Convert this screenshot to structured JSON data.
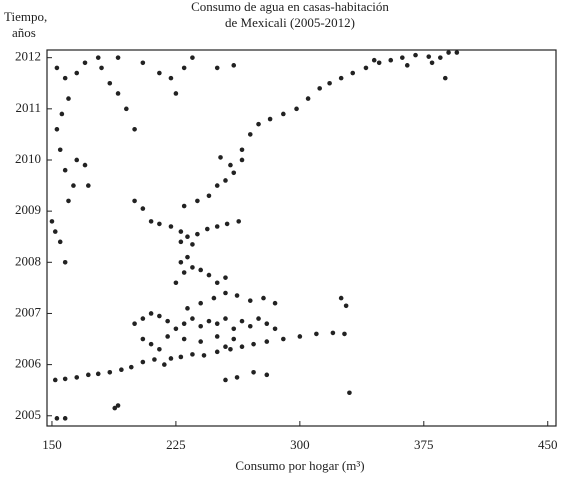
{
  "chart_data": {
    "type": "scatter",
    "title": [
      "Consumo de agua en casas-habitación",
      "de Mexicali (2005-2012)"
    ],
    "y_label": [
      "Tiempo,",
      "años"
    ],
    "x_label": "Consumo por hogar (m³)",
    "color": "#222222",
    "xlim": [
      147,
      455
    ],
    "ylim": [
      2004.8,
      2012.15
    ],
    "xticks": [
      150,
      225,
      300,
      375,
      450
    ],
    "yticks": [
      2005,
      2006,
      2007,
      2008,
      2009,
      2010,
      2011,
      2012
    ],
    "grid": false,
    "x": [
      152,
      158,
      165,
      172,
      178,
      185,
      192,
      198,
      205,
      212,
      218,
      222,
      228,
      235,
      242,
      250,
      258,
      265,
      272,
      280,
      290,
      300,
      310,
      320,
      327,
      153,
      158,
      190,
      188,
      200,
      205,
      210,
      215,
      220,
      225,
      230,
      235,
      240,
      245,
      250,
      255,
      260,
      265,
      270,
      275,
      280,
      285,
      232,
      240,
      248,
      255,
      262,
      270,
      278,
      285,
      205,
      210,
      215,
      220,
      230,
      240,
      250,
      255,
      260,
      225,
      230,
      235,
      228,
      232,
      240,
      245,
      250,
      255,
      210,
      215,
      222,
      228,
      232,
      238,
      244,
      250,
      256,
      263,
      228,
      235,
      200,
      205,
      230,
      238,
      245,
      250,
      255,
      260,
      258,
      265,
      252,
      150,
      152,
      155,
      158,
      160,
      163,
      158,
      165,
      170,
      172,
      155,
      153,
      156,
      160,
      158,
      153,
      165,
      170,
      180,
      185,
      190,
      195,
      200,
      178,
      190,
      205,
      215,
      222,
      225,
      230,
      235,
      250,
      260,
      265,
      270,
      275,
      282,
      290,
      298,
      305,
      312,
      318,
      325,
      332,
      340,
      348,
      355,
      362,
      370,
      378,
      385,
      390,
      395,
      345,
      365,
      380,
      388,
      325,
      328,
      330,
      280,
      272,
      262,
      255
    ],
    "values": [
      2005.7,
      2005.72,
      2005.75,
      2005.8,
      2005.82,
      2005.85,
      2005.9,
      2005.95,
      2006.05,
      2006.1,
      2006.0,
      2006.12,
      2006.15,
      2006.2,
      2006.18,
      2006.25,
      2006.3,
      2006.35,
      2006.4,
      2006.45,
      2006.5,
      2006.55,
      2006.6,
      2006.62,
      2006.6,
      2004.95,
      2004.95,
      2005.2,
      2005.15,
      2006.8,
      2006.9,
      2007.0,
      2006.95,
      2006.85,
      2006.7,
      2006.8,
      2006.9,
      2006.75,
      2006.85,
      2006.8,
      2006.9,
      2006.7,
      2006.85,
      2006.75,
      2006.9,
      2006.8,
      2006.7,
      2007.1,
      2007.2,
      2007.3,
      2007.4,
      2007.35,
      2007.25,
      2007.3,
      2007.2,
      2006.5,
      2006.4,
      2006.3,
      2006.55,
      2006.5,
      2006.45,
      2006.55,
      2006.35,
      2006.5,
      2007.6,
      2007.8,
      2007.9,
      2008.0,
      2008.1,
      2007.85,
      2007.75,
      2007.6,
      2007.7,
      2008.8,
      2008.75,
      2008.7,
      2008.6,
      2008.5,
      2008.55,
      2008.65,
      2008.7,
      2008.75,
      2008.8,
      2008.4,
      2008.35,
      2009.2,
      2009.05,
      2009.1,
      2009.2,
      2009.3,
      2009.5,
      2009.6,
      2009.75,
      2009.9,
      2010.0,
      2010.05,
      2008.8,
      2008.6,
      2008.4,
      2008.0,
      2009.2,
      2009.5,
      2009.8,
      2010.0,
      2009.9,
      2009.5,
      2010.2,
      2010.6,
      2010.9,
      2011.2,
      2011.6,
      2011.8,
      2011.7,
      2011.9,
      2011.8,
      2011.5,
      2011.3,
      2011.0,
      2010.6,
      2012.0,
      2012.0,
      2011.9,
      2011.7,
      2011.6,
      2011.3,
      2011.8,
      2012.0,
      2011.8,
      2011.85,
      2010.2,
      2010.5,
      2010.7,
      2010.8,
      2010.9,
      2011.0,
      2011.2,
      2011.4,
      2011.5,
      2011.6,
      2011.7,
      2011.8,
      2011.9,
      2011.95,
      2012.0,
      2012.05,
      2012.02,
      2012.0,
      2012.1,
      2012.1,
      2011.95,
      2011.85,
      2011.9,
      2011.6,
      2007.3,
      2007.15,
      2005.45,
      2005.8,
      2005.85,
      2005.75,
      2005.7
    ]
  }
}
